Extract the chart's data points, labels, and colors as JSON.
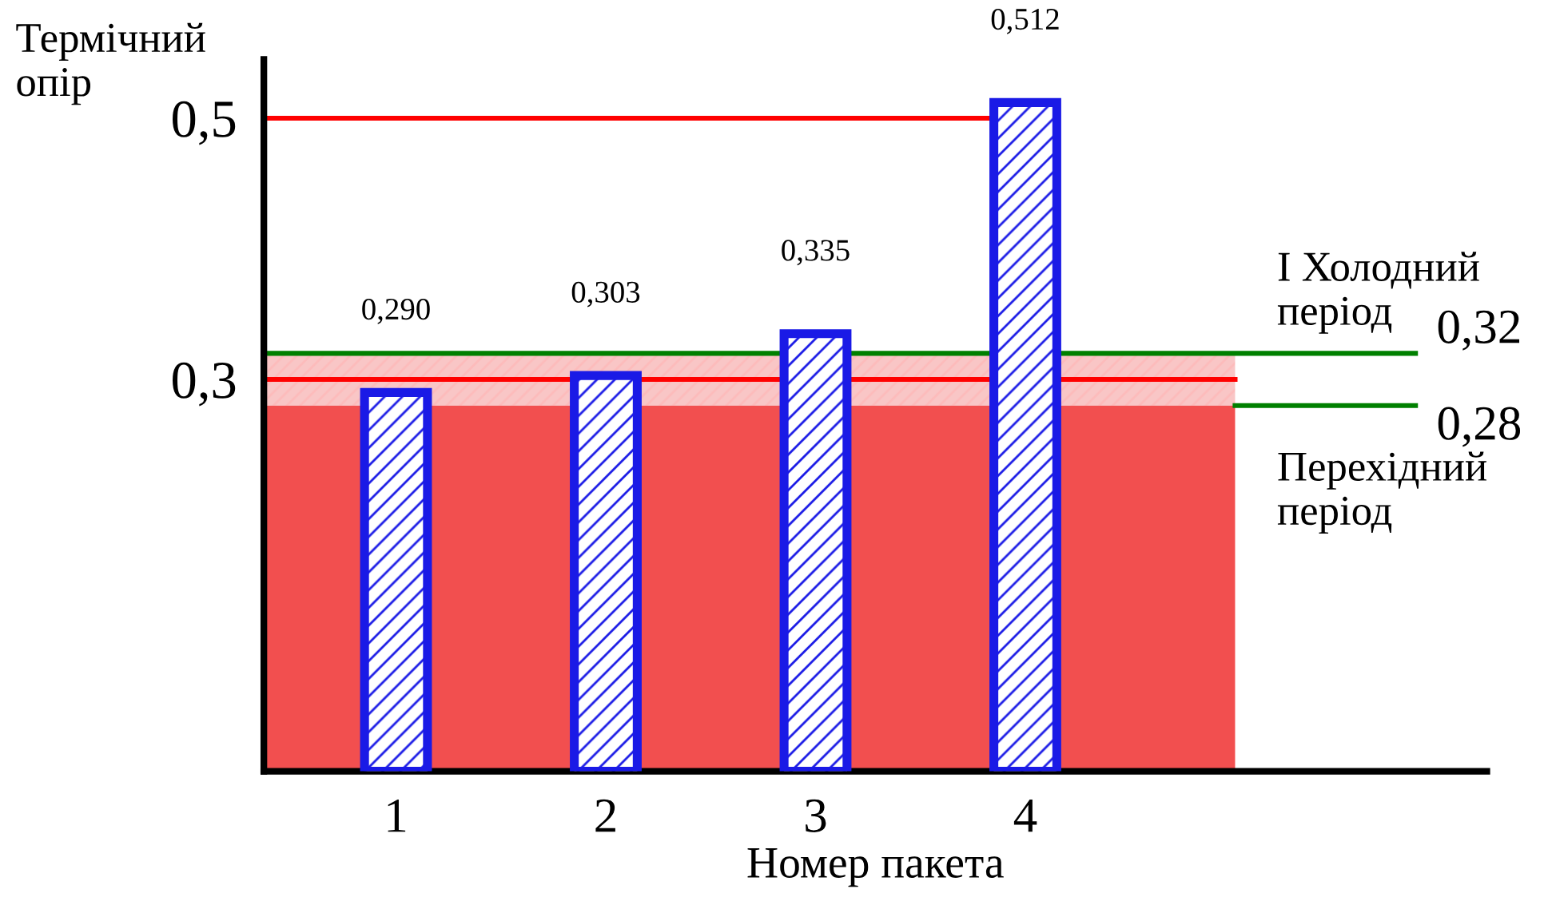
{
  "chart_data": {
    "type": "bar",
    "xlabel": "Номер пакета",
    "ylabel": "Термічний\nопір",
    "categories": [
      "1",
      "2",
      "3",
      "4"
    ],
    "values": [
      0.29,
      0.303,
      0.335,
      0.512
    ],
    "value_labels": [
      "0,290",
      "0,303",
      "0,335",
      "0,512"
    ],
    "color": "#1a1ae6",
    "ylim": [
      0,
      0.545
    ],
    "yticks": [
      {
        "value": 0.3,
        "label": "0,3"
      },
      {
        "value": 0.5,
        "label": "0,5"
      }
    ],
    "bands": [
      {
        "axis": "y",
        "from": 0,
        "to": 0.28,
        "color": "#f03030"
      },
      {
        "axis": "y",
        "from": 0.28,
        "to": 0.32,
        "color": "#f5a0a0"
      }
    ],
    "ref_lines": [
      {
        "axis": "y",
        "value": 0.5,
        "color": "#ff0000"
      },
      {
        "axis": "y",
        "value": 0.3,
        "color": "#ff0000"
      },
      {
        "axis": "y",
        "value": 0.32,
        "label": "0,32",
        "color": "#008000"
      },
      {
        "axis": "y",
        "value": 0.28,
        "label": "0,28",
        "color": "#008000"
      }
    ],
    "annotations": [
      "І Холодний\nперіод",
      "Перехідний\nперіод"
    ],
    "grid": false,
    "legend": false
  }
}
